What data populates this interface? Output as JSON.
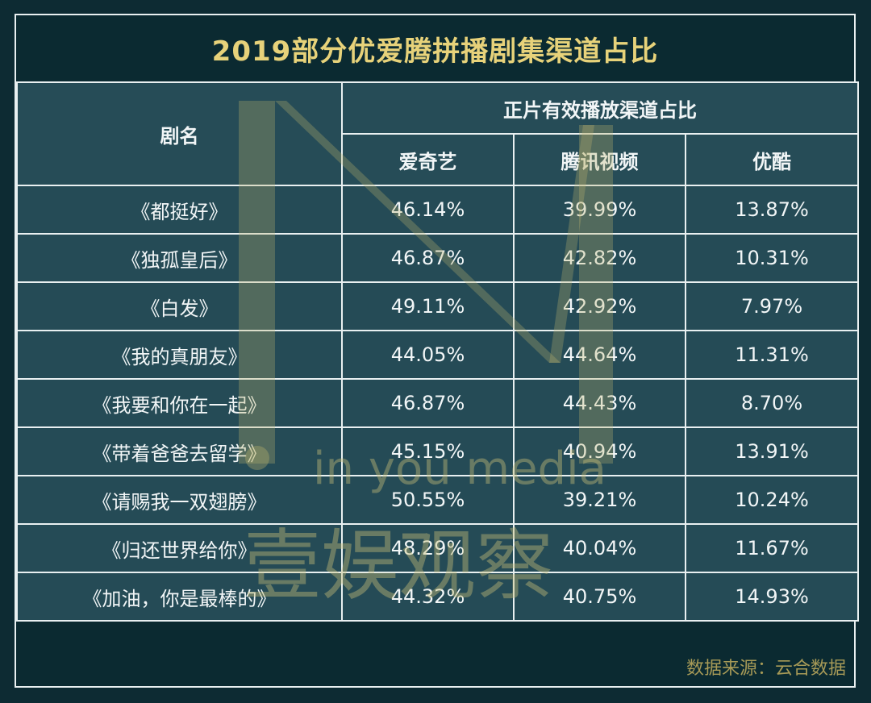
{
  "title": "2019部分优爱腾拼播剧集渠道占比",
  "header": {
    "name_col": "剧名",
    "group": "正片有效播放渠道占比",
    "platforms": [
      "爱奇艺",
      "腾讯视频",
      "优酷"
    ]
  },
  "watermark": {
    "line1": "in you media",
    "line2": "壹娱观察"
  },
  "footer": "数据来源：云合数据",
  "chart_data": {
    "type": "table",
    "title": "2019部分优爱腾拼播剧集渠道占比",
    "columns": [
      "剧名",
      "爱奇艺",
      "腾讯视频",
      "优酷"
    ],
    "rows": [
      {
        "name": "《都挺好》",
        "values": [
          "46.14%",
          "39.99%",
          "13.87%"
        ]
      },
      {
        "name": "《独孤皇后》",
        "values": [
          "46.87%",
          "42.82%",
          "10.31%"
        ]
      },
      {
        "name": "《白发》",
        "values": [
          "49.11%",
          "42.92%",
          "7.97%"
        ]
      },
      {
        "name": "《我的真朋友》",
        "values": [
          "44.05%",
          "44.64%",
          "11.31%"
        ]
      },
      {
        "name": "《我要和你在一起》",
        "values": [
          "46.87%",
          "44.43%",
          "8.70%"
        ]
      },
      {
        "name": "《带着爸爸去留学》",
        "values": [
          "45.15%",
          "40.94%",
          "13.91%"
        ]
      },
      {
        "name": "《请赐我一双翅膀》",
        "values": [
          "50.55%",
          "39.21%",
          "10.24%"
        ]
      },
      {
        "name": "《归还世界给你》",
        "values": [
          "48.29%",
          "40.04%",
          "11.67%"
        ]
      },
      {
        "name": "《加油，你是最棒的》",
        "values": [
          "44.32%",
          "40.75%",
          "14.93%"
        ]
      }
    ]
  }
}
